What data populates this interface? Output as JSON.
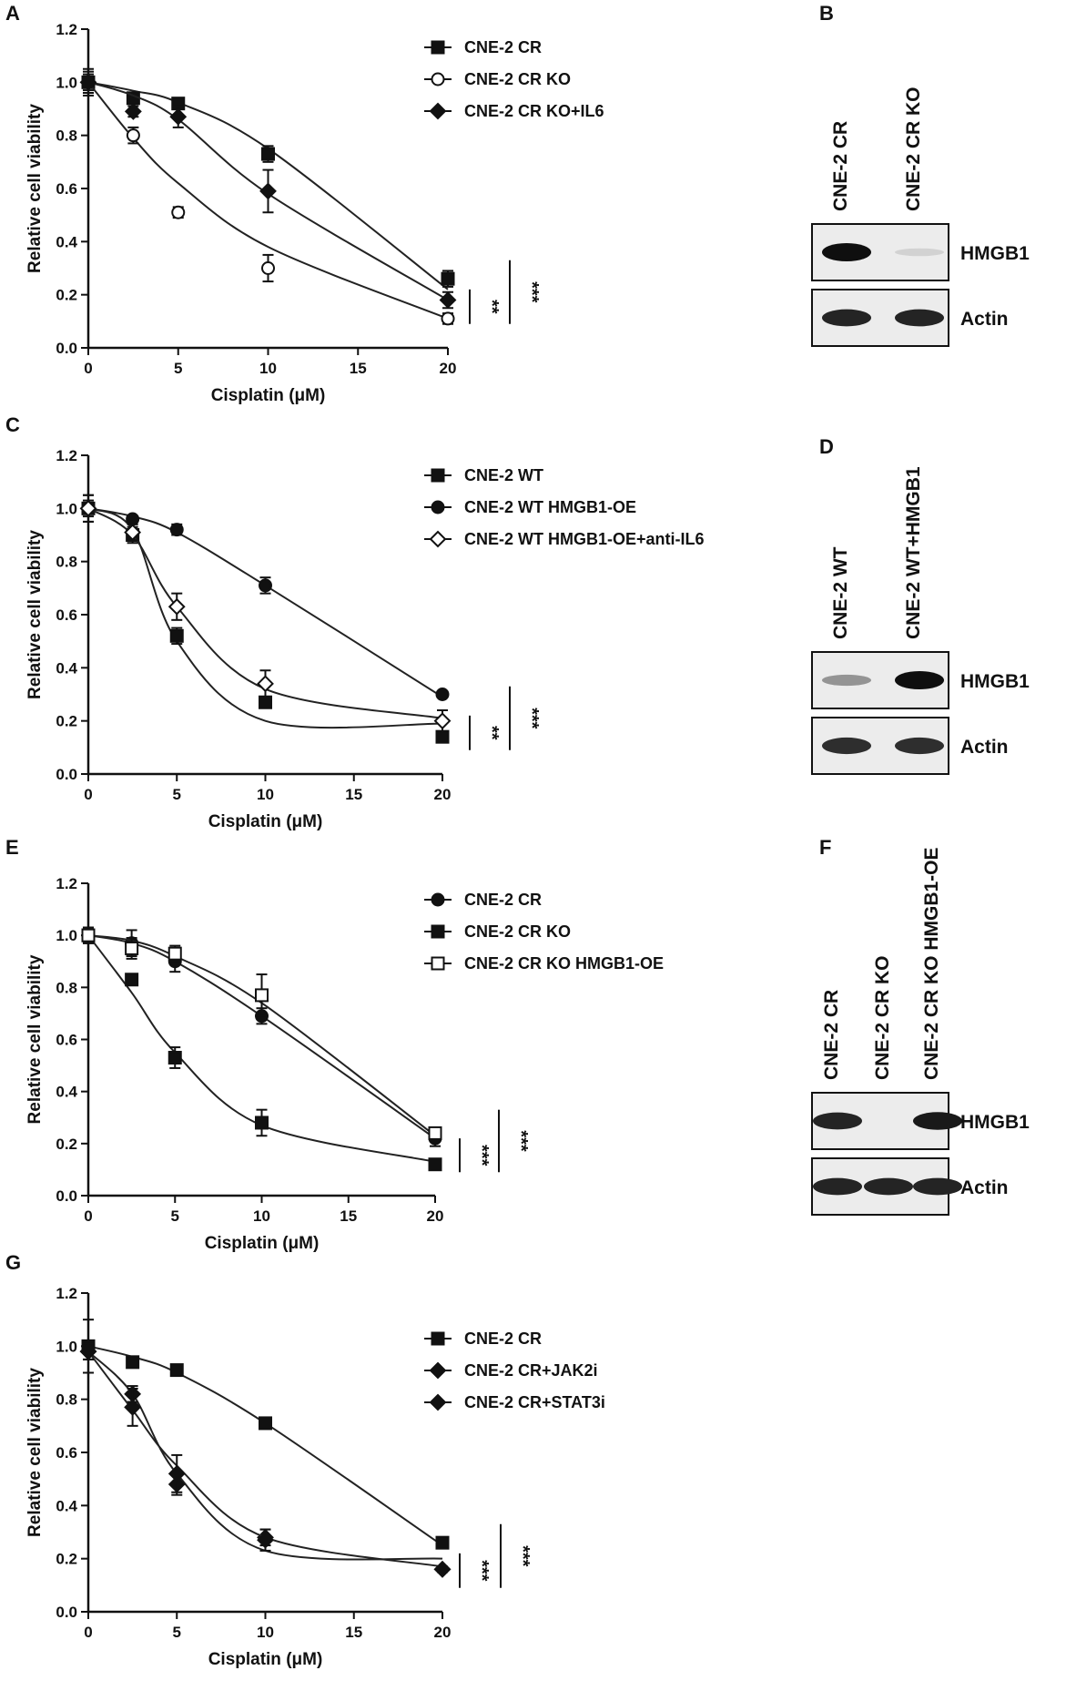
{
  "figure": {
    "panels": {
      "A": "A",
      "B": "B",
      "C": "C",
      "D": "D",
      "E": "E",
      "F": "F",
      "G": "G"
    }
  },
  "chart_data": [
    {
      "id": "A",
      "type": "line",
      "xlabel": "Cisplatin (μM)",
      "ylabel": "Relative cell viability",
      "xlim": [
        0,
        20
      ],
      "ylim": [
        0.0,
        1.2
      ],
      "x_ticks": [
        "0",
        "5",
        "10",
        "15",
        "20"
      ],
      "y_ticks": [
        "0.0",
        "0.2",
        "0.4",
        "0.6",
        "0.8",
        "1.0",
        "1.2"
      ],
      "x": [
        0,
        2.5,
        5,
        10,
        20
      ],
      "legend_position": "top-right",
      "series": [
        {
          "name": "CNE-2 CR",
          "marker": "square-filled",
          "values": [
            1.0,
            0.94,
            0.92,
            0.73,
            0.26
          ],
          "errors": [
            0.03,
            0.02,
            0.02,
            0.03,
            0.03
          ],
          "fit": [
            1.0,
            0.968,
            0.924,
            0.75,
            0.22
          ]
        },
        {
          "name": "CNE-2 CR KO",
          "marker": "circle-open",
          "values": [
            1.0,
            0.8,
            0.51,
            0.3,
            0.11
          ],
          "errors": [
            0.04,
            0.03,
            0.02,
            0.05,
            0.02
          ],
          "fit": [
            1.0,
            0.79,
            0.62,
            0.38,
            0.11
          ]
        },
        {
          "name": "CNE-2 CR KO+IL6",
          "marker": "diamond-filled",
          "values": [
            1.0,
            0.89,
            0.87,
            0.59,
            0.18
          ],
          "errors": [
            0.05,
            0.02,
            0.04,
            0.08,
            0.03
          ],
          "fit": [
            1.0,
            0.95,
            0.86,
            0.58,
            0.18
          ]
        }
      ],
      "significance": [
        "**",
        "***"
      ]
    },
    {
      "id": "C",
      "type": "line",
      "xlabel": "Cisplatin (μM)",
      "ylabel": "Relative cell viability",
      "xlim": [
        0,
        20
      ],
      "ylim": [
        0.0,
        1.2
      ],
      "x_ticks": [
        "0",
        "5",
        "10",
        "15",
        "20"
      ],
      "y_ticks": [
        "0.0",
        "0.2",
        "0.4",
        "0.6",
        "0.8",
        "1.0",
        "1.2"
      ],
      "x": [
        0,
        2.5,
        5,
        10,
        20
      ],
      "legend_position": "top-right",
      "series": [
        {
          "name": "CNE-2 WT",
          "marker": "square-filled",
          "values": [
            1.0,
            0.9,
            0.52,
            0.27,
            0.14
          ],
          "errors": [
            0.05,
            0.03,
            0.03,
            0.02,
            0.02
          ],
          "fit": [
            1.0,
            0.92,
            0.5,
            0.2,
            0.19
          ]
        },
        {
          "name": "CNE-2 WT HMGB1-OE",
          "marker": "circle-filled",
          "values": [
            1.0,
            0.96,
            0.92,
            0.71,
            0.3
          ],
          "errors": [
            0.03,
            0.01,
            0.02,
            0.03,
            0.01
          ],
          "fit": [
            1.0,
            0.97,
            0.91,
            0.71,
            0.29
          ]
        },
        {
          "name": "CNE-2 WT HMGB1-OE+anti-IL6",
          "marker": "diamond-open",
          "values": [
            1.0,
            0.91,
            0.63,
            0.34,
            0.2
          ],
          "errors": [
            0.05,
            0.03,
            0.05,
            0.05,
            0.04
          ],
          "fit": [
            1.0,
            0.9,
            0.63,
            0.32,
            0.21
          ]
        }
      ],
      "significance": [
        "**",
        "***"
      ]
    },
    {
      "id": "E",
      "type": "line",
      "xlabel": "Cisplatin (μM)",
      "ylabel": "Relative cell viability",
      "xlim": [
        0,
        20
      ],
      "ylim": [
        0.0,
        1.2
      ],
      "x_ticks": [
        "0",
        "5",
        "10",
        "15",
        "20"
      ],
      "y_ticks": [
        "0.0",
        "0.2",
        "0.4",
        "0.6",
        "0.8",
        "1.0",
        "1.2"
      ],
      "x": [
        0,
        2.5,
        5,
        10,
        20
      ],
      "legend_position": "top-right",
      "series": [
        {
          "name": "CNE-2 CR",
          "marker": "circle-filled",
          "values": [
            1.0,
            0.97,
            0.9,
            0.69,
            0.22
          ],
          "errors": [
            0.03,
            0.05,
            0.04,
            0.03,
            0.03
          ],
          "fit": [
            1.0,
            0.97,
            0.9,
            0.69,
            0.22
          ]
        },
        {
          "name": "CNE-2 CR KO",
          "marker": "square-filled",
          "values": [
            1.0,
            0.83,
            0.53,
            0.28,
            0.12
          ],
          "errors": [
            0.03,
            0.01,
            0.04,
            0.05,
            0.01
          ],
          "fit": [
            1.0,
            0.78,
            0.55,
            0.27,
            0.13
          ]
        },
        {
          "name": "CNE-2 CR KO HMGB1-OE",
          "marker": "square-open",
          "values": [
            1.0,
            0.95,
            0.93,
            0.77,
            0.24
          ],
          "errors": [
            0.03,
            0.04,
            0.03,
            0.08,
            0.02
          ],
          "fit": [
            1.0,
            0.98,
            0.92,
            0.74,
            0.23
          ]
        }
      ],
      "significance": [
        "***",
        "***"
      ]
    },
    {
      "id": "G",
      "type": "line",
      "xlabel": "Cisplatin (μM)",
      "ylabel": "Relative cell viability",
      "xlim": [
        0,
        20
      ],
      "ylim": [
        0.0,
        1.2
      ],
      "x_ticks": [
        "0",
        "5",
        "10",
        "15",
        "20"
      ],
      "y_ticks": [
        "0.0",
        "0.2",
        "0.4",
        "0.6",
        "0.8",
        "1.0",
        "1.2"
      ],
      "x": [
        0,
        2.5,
        5,
        10,
        20
      ],
      "legend_position": "top-right",
      "series": [
        {
          "name": "CNE-2 CR",
          "marker": "square-filled",
          "values": [
            1.0,
            0.94,
            0.91,
            0.71,
            0.26
          ],
          "errors": [
            0.1,
            0.02,
            0.01,
            0.01,
            0.01
          ],
          "fit": [
            1.0,
            0.96,
            0.9,
            0.71,
            0.25
          ]
        },
        {
          "name": "CNE-2 CR+JAK2i",
          "marker": "diamond-filled",
          "values": [
            0.98,
            0.82,
            0.48,
            0.28,
            0.16
          ],
          "errors": [
            0.03,
            0.03,
            0.04,
            0.03,
            0.01
          ],
          "fit": [
            0.98,
            0.82,
            0.52,
            0.23,
            0.2
          ]
        },
        {
          "name": "CNE-2 CR+STAT3i",
          "marker": "diamond-filled",
          "values": [
            0.98,
            0.77,
            0.52,
            0.27,
            0.16
          ],
          "errors": [
            0.03,
            0.07,
            0.07,
            0.04,
            0.01
          ],
          "fit": [
            0.98,
            0.76,
            0.55,
            0.28,
            0.17
          ]
        }
      ],
      "significance": [
        "***",
        "***"
      ]
    }
  ],
  "blots": [
    {
      "id": "B",
      "lanes": [
        "CNE-2 CR",
        "CNE-2 CR KO"
      ],
      "rows": [
        {
          "label": "HMGB1",
          "intensity": [
            1.0,
            0.05
          ]
        },
        {
          "label": "Actin",
          "intensity": [
            0.9,
            0.9
          ]
        }
      ]
    },
    {
      "id": "D",
      "lanes": [
        "CNE-2 WT",
        "CNE-2 WT+HMGB1"
      ],
      "rows": [
        {
          "label": "HMGB1",
          "intensity": [
            0.35,
            1.0
          ]
        },
        {
          "label": "Actin",
          "intensity": [
            0.85,
            0.85
          ]
        }
      ]
    },
    {
      "id": "F",
      "lanes": [
        "CNE-2 CR",
        "CNE-2 CR KO",
        "CNE-2 CR KO HMGB1-OE"
      ],
      "rows": [
        {
          "label": "HMGB1",
          "intensity": [
            0.9,
            0.0,
            0.95
          ]
        },
        {
          "label": "Actin",
          "intensity": [
            0.9,
            0.9,
            0.9
          ]
        }
      ]
    }
  ]
}
